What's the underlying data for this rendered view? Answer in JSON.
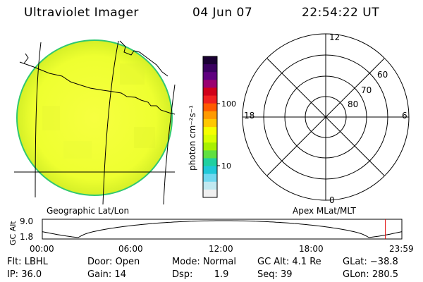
{
  "header": {
    "instrument": "Ultraviolet Imager",
    "date": "04 Jun 07",
    "time": "22:54:22 UT"
  },
  "colorbar": {
    "unit_label": "photon cm⁻²s⁻¹",
    "tick_100": "100",
    "tick_10": "10",
    "scale": "log",
    "colors_top_to_bottom": [
      "#1a0033",
      "#3a0060",
      "#600080",
      "#9a0070",
      "#d0001a",
      "#f02020",
      "#ff5a00",
      "#ff9a00",
      "#ffc800",
      "#f5ff00",
      "#d8ff00",
      "#a8f000",
      "#60e040",
      "#20d0a0",
      "#20c8d8",
      "#70d8f0",
      "#c0e8f0",
      "#f0f0f0"
    ]
  },
  "polar_plot": {
    "mlt_labels": {
      "top": "12",
      "left": "18",
      "right": "6",
      "bottom": "0"
    },
    "lat_labels": [
      "60",
      "70",
      "80"
    ]
  },
  "panel_labels": {
    "left": "Geographic Lat/Lon",
    "right": "Apex MLat/MLT"
  },
  "altitude_plot": {
    "ylabel": "GC Alt",
    "y_ticks": [
      "9.0",
      "1.8"
    ],
    "x_ticks": [
      "00:00",
      "06:00",
      "12:00",
      "18:00",
      "23:59"
    ],
    "current_time_hours": 22.9
  },
  "status": {
    "flt_label": "Flt:",
    "flt_value": "LBHL",
    "ip_label": "IP:",
    "ip_value": "36.0",
    "door_label": "Door:",
    "door_value": "Open",
    "gain_label": "Gain:",
    "gain_value": "14",
    "mode_label": "Mode:",
    "mode_value": "Normal",
    "dsp_label": "Dsp:",
    "dsp_value": "1.9",
    "gcalt_label": "GC Alt:",
    "gcalt_value": "4.1 Re",
    "seq_label": "Seq:",
    "seq_value": "39",
    "glat_label": "GLat:",
    "glat_value": "−38.8",
    "glon_label": "GLon:",
    "glon_value": "280.5"
  }
}
